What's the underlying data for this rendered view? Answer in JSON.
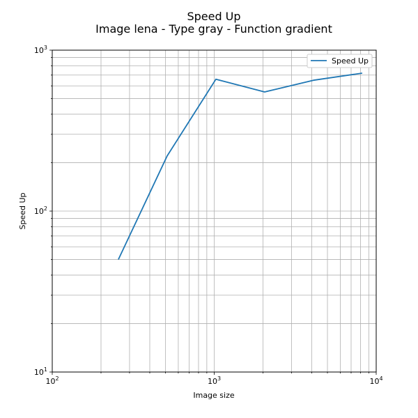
{
  "chart_data": {
    "type": "line",
    "title": "Speed Up",
    "subtitle": "Image lena - Type gray - Function gradient",
    "xlabel": "Image size",
    "ylabel": "Speed Up",
    "xscale": "log",
    "yscale": "log",
    "xlim": [
      100,
      10000
    ],
    "ylim": [
      10,
      1000
    ],
    "grid": true,
    "grid_minor": true,
    "legend_position": "top-right",
    "x_tick_labels": [
      {
        "base": "10",
        "exp": "2",
        "value": 100
      },
      {
        "base": "10",
        "exp": "3",
        "value": 1000
      },
      {
        "base": "10",
        "exp": "4",
        "value": 10000
      }
    ],
    "y_tick_labels": [
      {
        "base": "10",
        "exp": "1",
        "value": 10
      },
      {
        "base": "10",
        "exp": "2",
        "value": 100
      },
      {
        "base": "10",
        "exp": "3",
        "value": 1000
      }
    ],
    "series": [
      {
        "name": "Speed Up",
        "color": "#1f77b4",
        "x": [
          256,
          512,
          1024,
          2048,
          4096,
          8192
        ],
        "y": [
          50,
          220,
          660,
          550,
          650,
          720
        ]
      }
    ]
  }
}
